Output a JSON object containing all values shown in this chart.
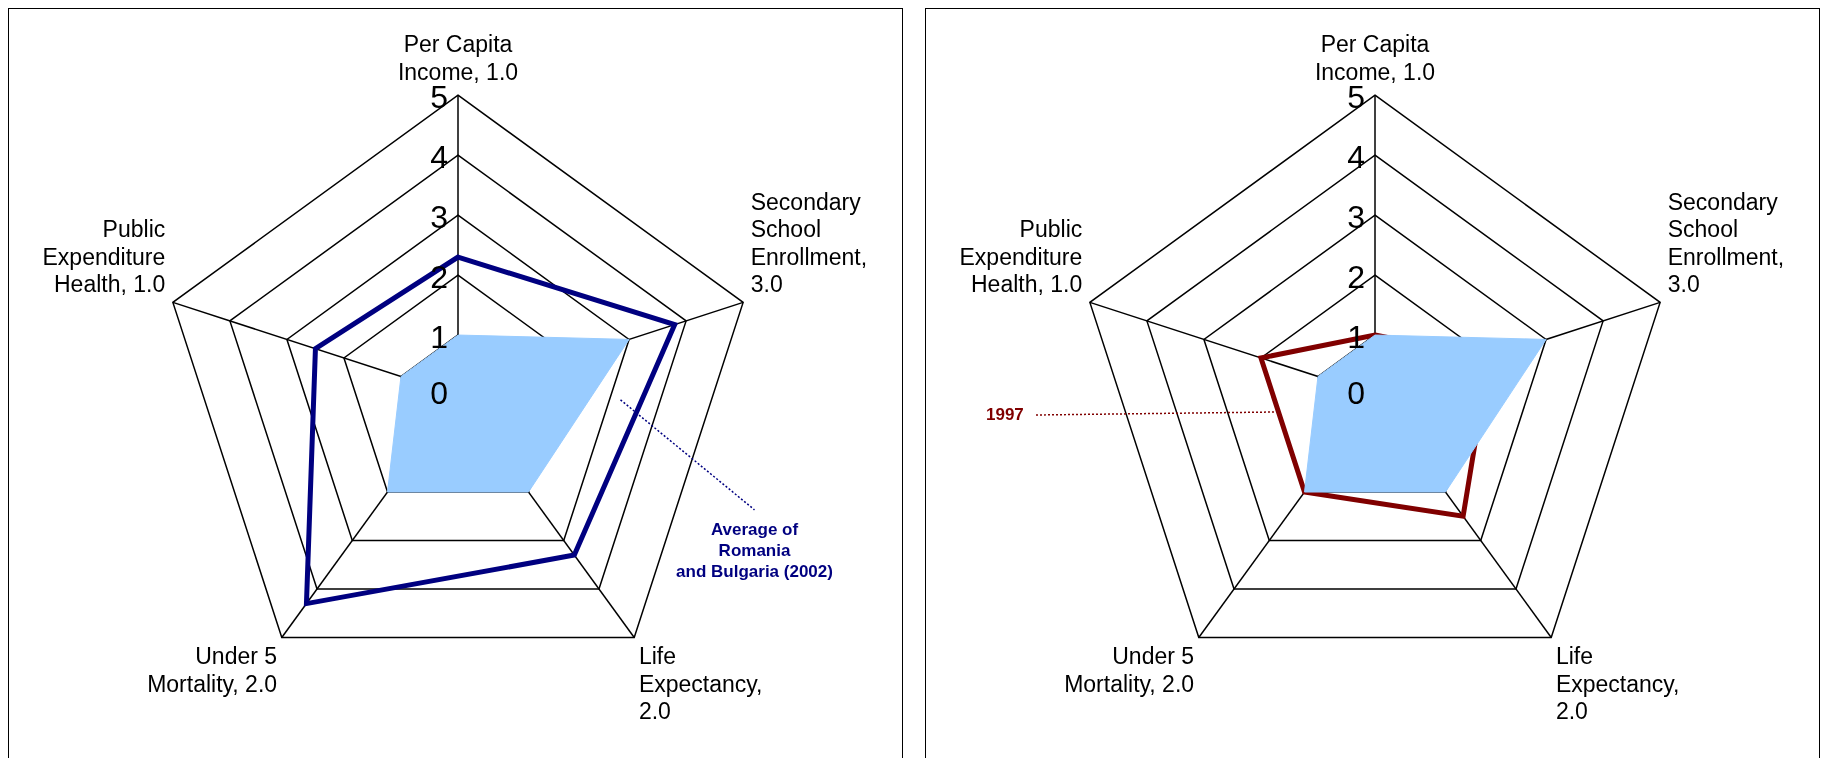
{
  "chart_data": [
    {
      "type": "radar",
      "categories": [
        "Per Capita Income, 1.0",
        "Secondary School Enrollment, 3.0",
        "Life Expectancy, 2.0",
        "Under 5 Mortality, 2.0",
        "Public Expenditure Health, 1.0"
      ],
      "ylim": [
        0,
        5
      ],
      "yticks": [
        0,
        1,
        2,
        3,
        4,
        5
      ],
      "grid": true,
      "legend": false,
      "marker": "none",
      "series": [
        {
          "type": "area",
          "color": "#99ccff",
          "values": [
            1.0,
            3.0,
            2.0,
            2.0,
            1.0
          ]
        },
        {
          "type": "radar",
          "name": "Average of Romania and Bulgaria (2002)",
          "color": "#000080",
          "values": [
            2.3,
            3.8,
            3.3,
            4.3,
            2.5
          ]
        }
      ]
    },
    {
      "type": "radar",
      "categories": [
        "Per Capita Income, 1.0",
        "Secondary School Enrollment, 3.0",
        "Life Expectancy, 2.0",
        "Under 5 Mortality, 2.0",
        "Public Expenditure Health, 1.0"
      ],
      "ylim": [
        0,
        5
      ],
      "yticks": [
        0,
        1,
        2,
        3,
        4,
        5
      ],
      "grid": true,
      "legend": false,
      "marker": "none",
      "series": [
        {
          "type": "area",
          "color": "#99ccff",
          "values": [
            1.0,
            3.0,
            2.0,
            2.0,
            1.0
          ]
        },
        {
          "type": "radar",
          "name": "1997",
          "color": "#800000",
          "values": [
            1.0,
            2.0,
            2.5,
            2.0,
            2.0
          ]
        }
      ]
    }
  ]
}
